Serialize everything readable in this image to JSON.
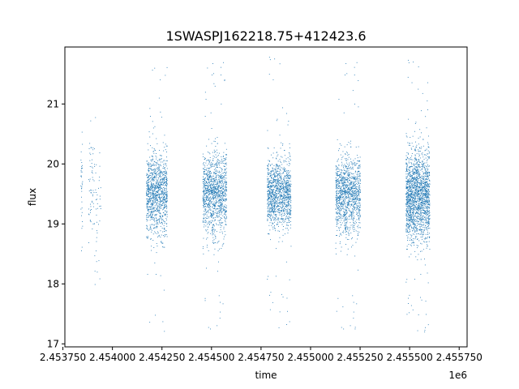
{
  "chart_data": {
    "type": "scatter",
    "title": "1SWASPJ162218.75+412423.6",
    "xlabel": "time",
    "ylabel": "flux",
    "x_offset_label": "1e6",
    "x_scale": 1000000,
    "xlim": [
      2453760,
      2455790
    ],
    "ylim": [
      16.95,
      21.95
    ],
    "x_ticks": [
      2453750,
      2454000,
      2454250,
      2454500,
      2454750,
      2455000,
      2455250,
      2455500,
      2455750
    ],
    "x_tick_labels": [
      "2.453750",
      "2.454000",
      "2.454250",
      "2.454500",
      "2.454750",
      "2.455000",
      "2.455250",
      "2.455500",
      "2.455750"
    ],
    "y_ticks": [
      17,
      18,
      19,
      20,
      21
    ],
    "y_tick_labels": [
      "17",
      "18",
      "19",
      "20",
      "21"
    ],
    "grid": false,
    "legend": "none",
    "marker_color": "#1f77b4",
    "series": [
      {
        "clusters": [
          {
            "x_start": 2453838,
            "x_end": 2453848,
            "y_center": 19.7,
            "y_spread": 0.55,
            "density": 35
          },
          {
            "x_start": 2453878,
            "x_end": 2453903,
            "y_center": 19.6,
            "y_spread": 0.6,
            "density": 50
          },
          {
            "x_start": 2453905,
            "x_end": 2453940,
            "y_center": 19.2,
            "y_spread": 0.7,
            "density": 45
          },
          {
            "x_start": 2454170,
            "x_end": 2454275,
            "y_center": 19.5,
            "y_spread": 0.45,
            "density": 1100
          },
          {
            "x_start": 2454455,
            "x_end": 2454575,
            "y_center": 19.5,
            "y_spread": 0.45,
            "density": 1200
          },
          {
            "x_start": 2454780,
            "x_end": 2454900,
            "y_center": 19.5,
            "y_spread": 0.38,
            "density": 1200
          },
          {
            "x_start": 2455125,
            "x_end": 2455250,
            "y_center": 19.5,
            "y_spread": 0.42,
            "density": 1200
          },
          {
            "x_start": 2455480,
            "x_end": 2455600,
            "y_center": 19.45,
            "y_spread": 0.5,
            "density": 1800
          }
        ]
      }
    ]
  }
}
